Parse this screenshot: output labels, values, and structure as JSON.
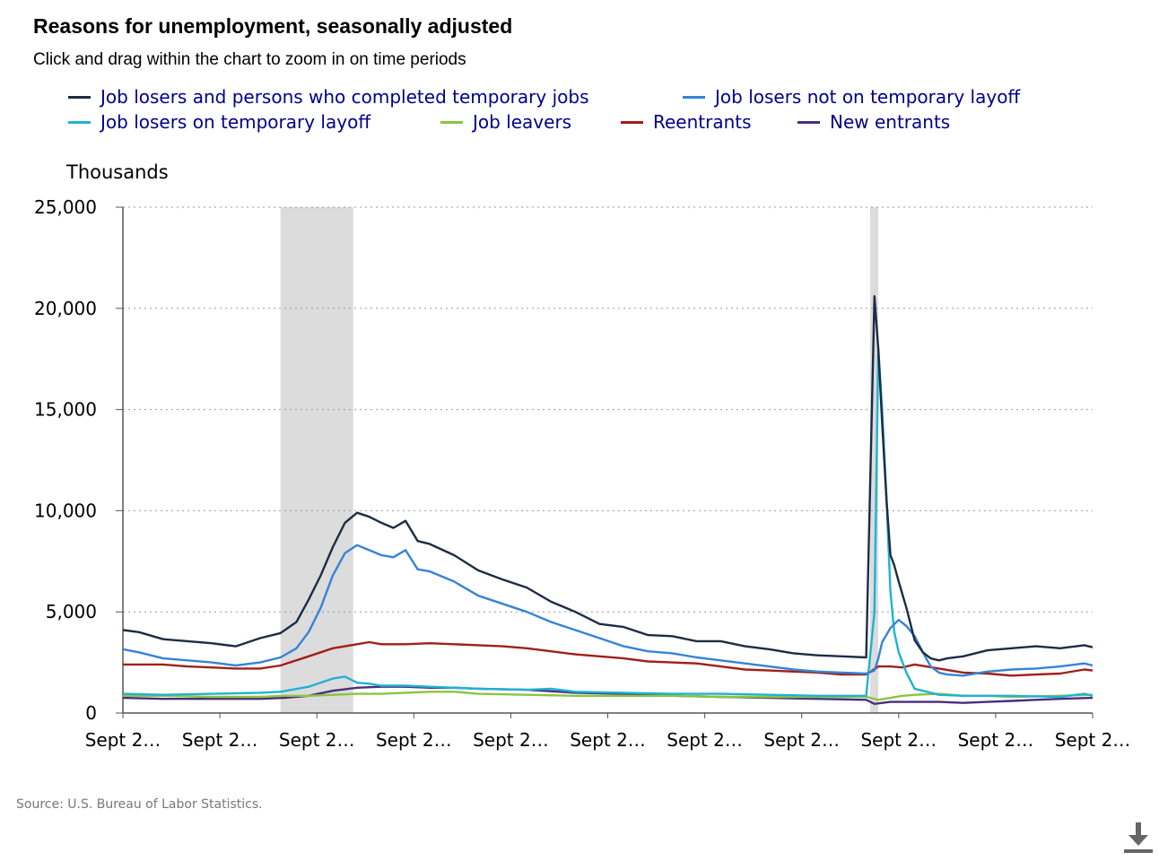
{
  "title": "Reasons for unemployment, seasonally adjusted",
  "subtitle": "Click and drag within the chart to zoom in on time periods",
  "source": "Source: U.S. Bureau of Labor Statistics.",
  "download_icon": "download-icon",
  "chart_data": {
    "type": "line",
    "ylabel": "Thousands",
    "xlabel": "",
    "ylim": [
      0,
      25000
    ],
    "yticks": [
      "0",
      "5,000",
      "10,000",
      "15,000",
      "20,000",
      "25,000"
    ],
    "ytick_values": [
      0,
      5000,
      10000,
      15000,
      20000,
      25000
    ],
    "xtick_labels": [
      "Sept 2…",
      "Sept 2…",
      "Sept 2…",
      "Sept 2…",
      "Sept 2…",
      "Sept 2…",
      "Sept 2…",
      "Sept 2…",
      "Sept 2…",
      "Sept 2…",
      "Sept 2…"
    ],
    "x_range": [
      2004.67,
      2024.67
    ],
    "grid": true,
    "legend_position": "top",
    "recessions": [
      [
        2007.92,
        2009.42
      ],
      [
        2020.08,
        2020.25
      ]
    ],
    "series": [
      {
        "name": "Job losers and persons who completed temporary jobs",
        "color": "#1d2c45",
        "x": [
          2004.67,
          2005.0,
          2005.5,
          2006.0,
          2006.5,
          2007.0,
          2007.5,
          2007.92,
          2008.25,
          2008.5,
          2008.75,
          2009.0,
          2009.25,
          2009.5,
          2009.75,
          2010.0,
          2010.25,
          2010.5,
          2010.75,
          2011.0,
          2011.5,
          2012.0,
          2012.5,
          2013.0,
          2013.5,
          2014.0,
          2014.5,
          2015.0,
          2015.5,
          2016.0,
          2016.5,
          2017.0,
          2017.5,
          2018.0,
          2018.5,
          2019.0,
          2019.5,
          2020.0,
          2020.17,
          2020.25,
          2020.33,
          2020.42,
          2020.5,
          2020.58,
          2020.67,
          2020.83,
          2021.0,
          2021.17,
          2021.33,
          2021.5,
          2021.67,
          2022.0,
          2022.5,
          2023.0,
          2023.5,
          2024.0,
          2024.5,
          2024.67
        ],
        "y": [
          4100,
          4000,
          3650,
          3550,
          3450,
          3300,
          3700,
          3950,
          4500,
          5600,
          6800,
          8200,
          9400,
          9900,
          9700,
          9400,
          9150,
          9500,
          8500,
          8350,
          7800,
          7050,
          6600,
          6200,
          5500,
          5000,
          4400,
          4250,
          3850,
          3800,
          3550,
          3550,
          3300,
          3150,
          2950,
          2850,
          2800,
          2750,
          20600,
          18000,
          14300,
          10500,
          7800,
          7300,
          6500,
          5200,
          3600,
          3000,
          2700,
          2600,
          2700,
          2800,
          3100,
          3200,
          3300,
          3200,
          3350,
          3250
        ]
      },
      {
        "name": "Job losers not on temporary layoff",
        "color": "#3683d6",
        "x": [
          2004.67,
          2005.0,
          2005.5,
          2006.0,
          2006.5,
          2007.0,
          2007.5,
          2007.92,
          2008.25,
          2008.5,
          2008.75,
          2009.0,
          2009.25,
          2009.5,
          2009.75,
          2010.0,
          2010.25,
          2010.5,
          2010.75,
          2011.0,
          2011.5,
          2012.0,
          2012.5,
          2013.0,
          2013.5,
          2014.0,
          2014.5,
          2015.0,
          2015.5,
          2016.0,
          2016.5,
          2017.0,
          2017.5,
          2018.0,
          2018.5,
          2019.0,
          2019.5,
          2020.0,
          2020.17,
          2020.25,
          2020.33,
          2020.5,
          2020.67,
          2020.83,
          2021.0,
          2021.17,
          2021.33,
          2021.5,
          2021.67,
          2022.0,
          2022.5,
          2023.0,
          2023.5,
          2024.0,
          2024.5,
          2024.67
        ],
        "y": [
          3150,
          3000,
          2700,
          2600,
          2500,
          2350,
          2500,
          2750,
          3200,
          4000,
          5200,
          6800,
          7900,
          8300,
          8050,
          7800,
          7700,
          8050,
          7100,
          7000,
          6500,
          5800,
          5400,
          5000,
          4500,
          4100,
          3700,
          3300,
          3050,
          2950,
          2750,
          2600,
          2450,
          2300,
          2150,
          2050,
          2000,
          1950,
          2100,
          2700,
          3500,
          4200,
          4600,
          4300,
          3800,
          3000,
          2300,
          2000,
          1900,
          1850,
          2050,
          2150,
          2200,
          2300,
          2450,
          2350
        ]
      },
      {
        "name": "Job losers on temporary layoff",
        "color": "#1fb2d3",
        "x": [
          2004.67,
          2005.5,
          2006.5,
          2007.5,
          2007.92,
          2008.5,
          2009.0,
          2009.25,
          2009.5,
          2009.75,
          2010.0,
          2010.5,
          2011.0,
          2012.0,
          2013.0,
          2013.5,
          2014.0,
          2015.0,
          2016.0,
          2017.0,
          2018.0,
          2019.0,
          2020.0,
          2020.17,
          2020.25,
          2020.33,
          2020.42,
          2020.5,
          2020.58,
          2020.67,
          2020.83,
          2021.0,
          2021.5,
          2022.0,
          2023.0,
          2024.0,
          2024.5,
          2024.67
        ],
        "y": [
          950,
          900,
          950,
          1000,
          1050,
          1300,
          1700,
          1800,
          1500,
          1450,
          1350,
          1350,
          1300,
          1200,
          1150,
          1200,
          1050,
          1000,
          950,
          950,
          900,
          850,
          850,
          5000,
          18000,
          15000,
          10500,
          6000,
          4000,
          3000,
          2000,
          1200,
          900,
          850,
          850,
          800,
          950,
          850
        ]
      },
      {
        "name": "Job leavers",
        "color": "#8ac53f",
        "x": [
          2004.67,
          2005.5,
          2006.5,
          2007.5,
          2008.0,
          2008.5,
          2009.0,
          2009.5,
          2010.0,
          2010.5,
          2011.0,
          2011.5,
          2012.0,
          2013.0,
          2014.0,
          2015.0,
          2016.0,
          2017.0,
          2018.0,
          2019.0,
          2020.0,
          2020.25,
          2020.5,
          2020.75,
          2021.0,
          2021.5,
          2022.0,
          2022.5,
          2023.0,
          2024.0,
          2024.67
        ],
        "y": [
          850,
          850,
          800,
          800,
          850,
          850,
          900,
          950,
          950,
          1000,
          1050,
          1050,
          950,
          900,
          850,
          850,
          850,
          800,
          800,
          800,
          800,
          650,
          750,
          850,
          900,
          950,
          850,
          850,
          800,
          850,
          900
        ]
      },
      {
        "name": "Reentrants",
        "color": "#a11f1a",
        "x": [
          2004.67,
          2005.0,
          2005.5,
          2006.0,
          2006.5,
          2007.0,
          2007.5,
          2007.92,
          2008.5,
          2009.0,
          2009.5,
          2009.75,
          2010.0,
          2010.5,
          2011.0,
          2011.5,
          2012.0,
          2012.5,
          2013.0,
          2013.5,
          2014.0,
          2014.5,
          2015.0,
          2015.5,
          2016.0,
          2016.5,
          2017.0,
          2017.5,
          2018.0,
          2018.5,
          2019.0,
          2019.5,
          2020.0,
          2020.25,
          2020.5,
          2020.75,
          2021.0,
          2021.5,
          2022.0,
          2022.5,
          2023.0,
          2023.5,
          2024.0,
          2024.5,
          2024.67
        ],
        "y": [
          2400,
          2400,
          2400,
          2300,
          2250,
          2200,
          2200,
          2350,
          2800,
          3200,
          3400,
          3500,
          3400,
          3400,
          3450,
          3400,
          3350,
          3300,
          3200,
          3050,
          2900,
          2800,
          2700,
          2550,
          2500,
          2450,
          2300,
          2150,
          2100,
          2050,
          2000,
          1900,
          1900,
          2300,
          2300,
          2250,
          2400,
          2200,
          2000,
          1950,
          1850,
          1900,
          1950,
          2150,
          2100
        ]
      },
      {
        "name": "New entrants",
        "color": "#4b2c7d",
        "x": [
          2004.67,
          2005.5,
          2006.5,
          2007.5,
          2008.0,
          2008.5,
          2009.0,
          2009.5,
          2010.0,
          2010.5,
          2011.0,
          2011.5,
          2012.0,
          2013.0,
          2014.0,
          2015.0,
          2016.0,
          2017.0,
          2018.0,
          2019.0,
          2020.0,
          2020.17,
          2020.5,
          2021.0,
          2021.5,
          2022.0,
          2022.5,
          2023.0,
          2023.5,
          2024.0,
          2024.67
        ],
        "y": [
          750,
          700,
          700,
          700,
          750,
          850,
          1100,
          1250,
          1300,
          1300,
          1250,
          1250,
          1200,
          1150,
          1000,
          950,
          850,
          800,
          750,
          700,
          650,
          450,
          550,
          550,
          550,
          500,
          550,
          600,
          650,
          700,
          750
        ]
      }
    ]
  }
}
